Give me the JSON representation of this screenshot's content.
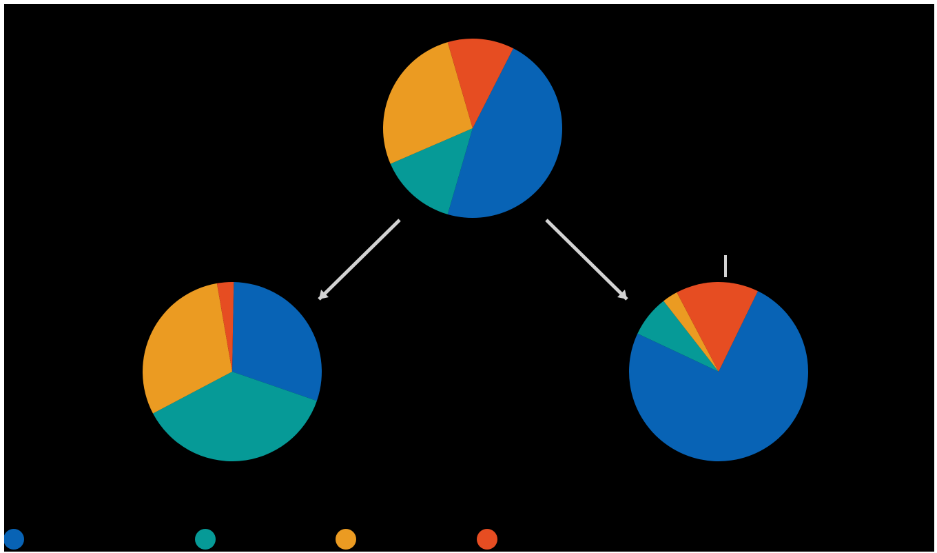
{
  "colors": {
    "blue": "#0863b5",
    "teal": "#069a97",
    "orange": "#eb9b22",
    "red": "#e64d22",
    "arrow": "#d3d3d3",
    "background": "#000000"
  },
  "legend": [
    {
      "name": "",
      "color": "#0863b5"
    },
    {
      "name": "",
      "color": "#069a97"
    },
    {
      "name": "",
      "color": "#eb9b22"
    },
    {
      "name": "",
      "color": "#e64d22"
    }
  ],
  "chart_data": [
    {
      "type": "pie",
      "position": "top-center",
      "title": "",
      "slices": [
        {
          "name": "",
          "value": 47,
          "color": "#0863b5"
        },
        {
          "name": "",
          "value": 14,
          "color": "#069a97"
        },
        {
          "name": "",
          "value": 27,
          "color": "#eb9b22"
        },
        {
          "name": "",
          "value": 12,
          "color": "#e64d22"
        }
      ],
      "start_angle_deg": 63
    },
    {
      "type": "pie",
      "position": "bottom-left",
      "title": "",
      "slices": [
        {
          "name": "",
          "value": 30,
          "color": "#0863b5"
        },
        {
          "name": "",
          "value": 37,
          "color": "#069a97"
        },
        {
          "name": "",
          "value": 30,
          "color": "#eb9b22"
        },
        {
          "name": "",
          "value": 3,
          "color": "#e64d22"
        }
      ],
      "start_angle_deg": 89
    },
    {
      "type": "pie",
      "position": "bottom-right",
      "title": "",
      "slices": [
        {
          "name": "",
          "value": 80,
          "color": "#0863b5"
        },
        {
          "name": "",
          "value": 8,
          "color": "#069a97"
        },
        {
          "name": "",
          "value": 3,
          "color": "#eb9b22"
        },
        {
          "name": "",
          "value": 16,
          "color": "#e64d22"
        }
      ],
      "start_angle_deg": 64
    }
  ]
}
